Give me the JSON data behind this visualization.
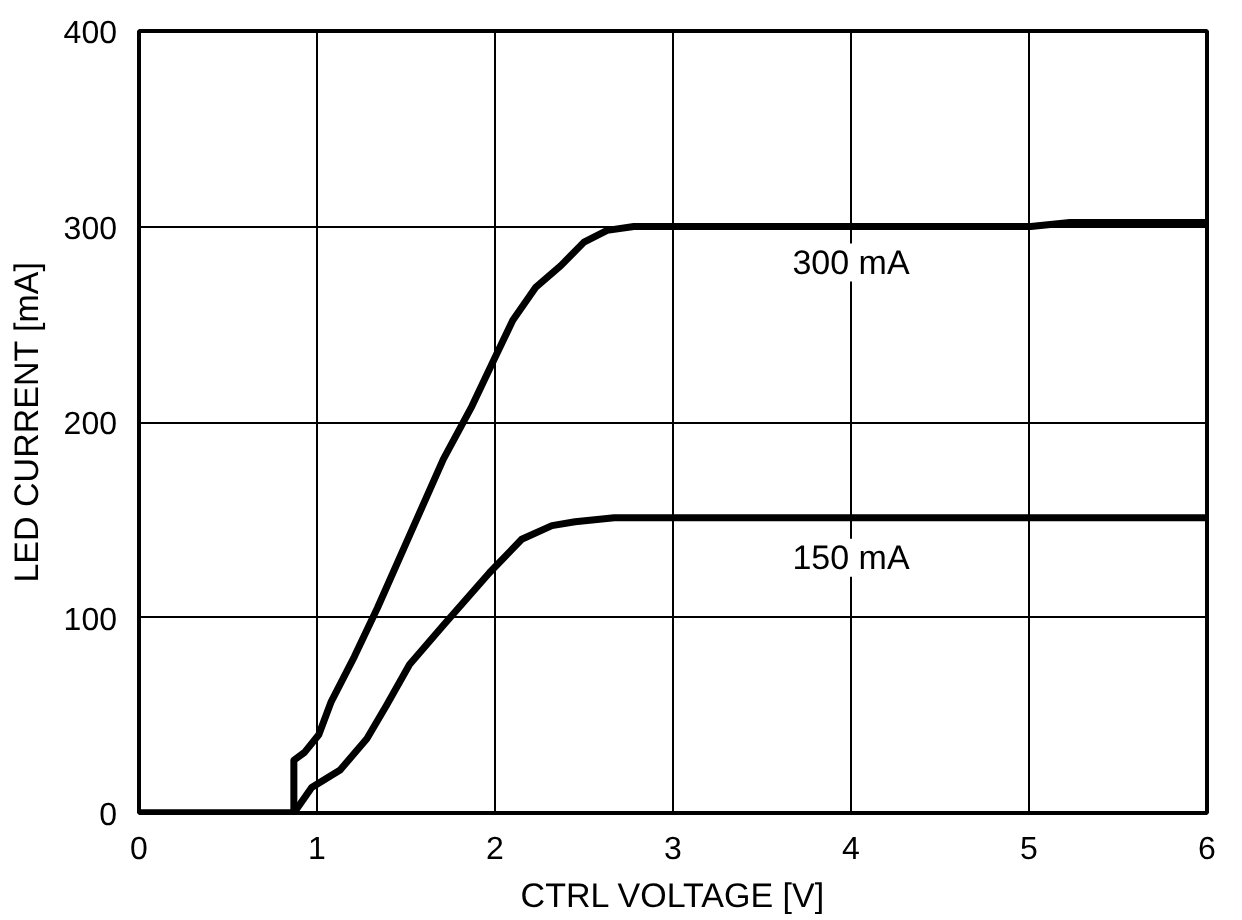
{
  "chart_data": {
    "type": "line",
    "xlabel": "CTRL VOLTAGE [V]",
    "ylabel": "LED CURRENT [mA]",
    "xlim": [
      0,
      6
    ],
    "ylim": [
      0,
      400
    ],
    "xticks": [
      0,
      1,
      2,
      3,
      4,
      5,
      6
    ],
    "yticks": [
      0,
      100,
      200,
      300,
      400
    ],
    "grid": true,
    "line_style": "solid",
    "series": [
      {
        "name": "300 mA",
        "color": "#000000",
        "x": [
          0,
          0.87,
          0.87,
          0.93,
          1.01,
          1.08,
          1.21,
          1.34,
          1.52,
          1.71,
          1.87,
          2.0,
          2.1,
          2.23,
          2.37,
          2.5,
          2.63,
          2.78,
          5.01,
          5.23,
          6.0
        ],
        "values": [
          0,
          0,
          27,
          31,
          40,
          57,
          80,
          105,
          142,
          181,
          208,
          233,
          252,
          269,
          280,
          292,
          298,
          300,
          300,
          302,
          302
        ]
      },
      {
        "name": "150 mA",
        "color": "#000000",
        "x": [
          0,
          0.87,
          0.97,
          1.13,
          1.28,
          1.39,
          1.52,
          1.71,
          1.97,
          2.15,
          2.32,
          2.45,
          2.67,
          6.0
        ],
        "values": [
          0,
          0,
          13,
          22,
          38,
          55,
          76,
          96,
          123,
          140,
          147,
          149,
          151,
          151
        ]
      }
    ]
  }
}
